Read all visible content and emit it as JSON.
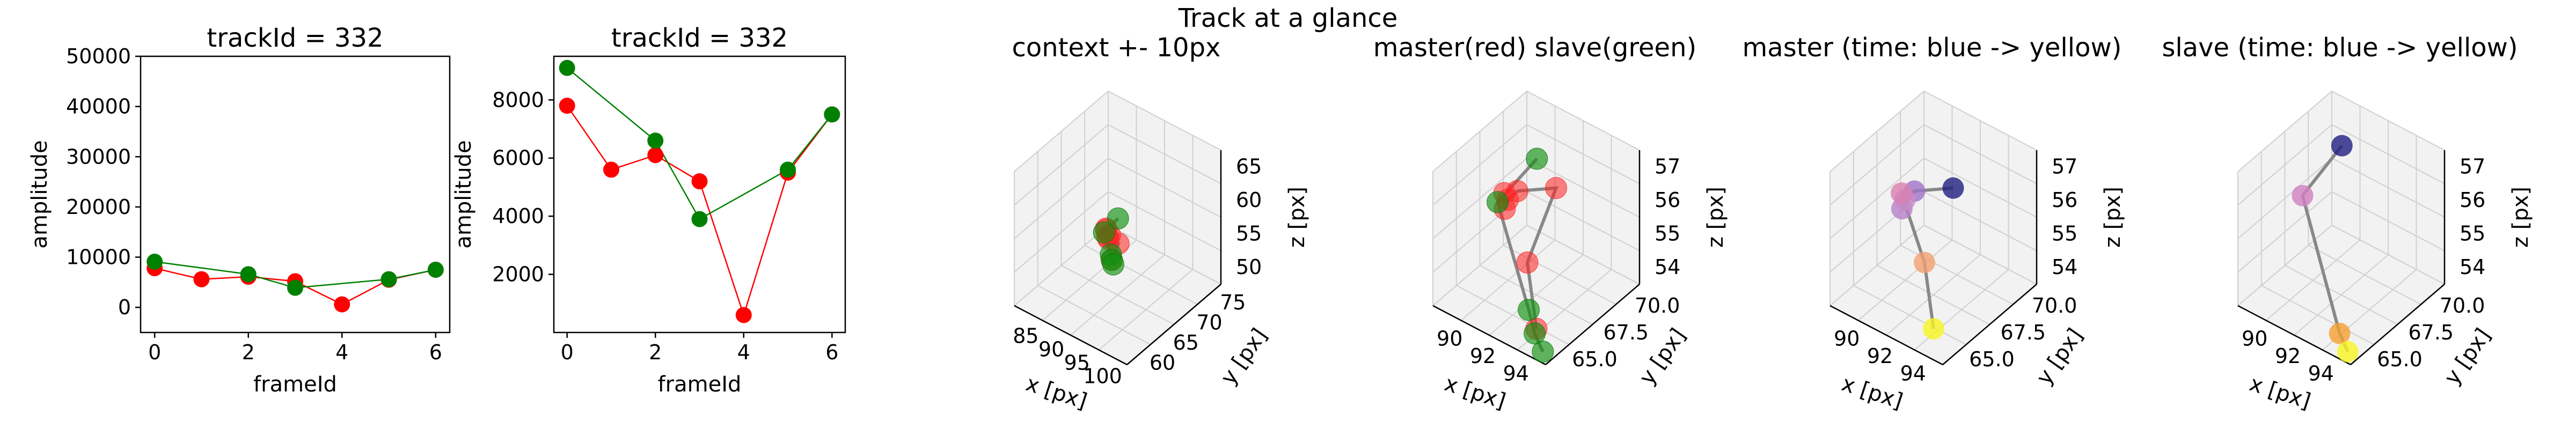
{
  "suptitle": "Track at a glance",
  "chart_data": [
    {
      "type": "line",
      "title": "trackId = 332",
      "xlabel": "frameId",
      "ylabel": "amplitude",
      "xlim": [
        -0.3,
        6.3
      ],
      "ylim": [
        -5000,
        50000
      ],
      "xticks": [
        0,
        2,
        4,
        6
      ],
      "yticks": [
        0,
        10000,
        20000,
        30000,
        40000,
        50000
      ],
      "series": [
        {
          "color": "#ff0000",
          "x": [
            0,
            1,
            2,
            3,
            4,
            5,
            6
          ],
          "values": [
            7800,
            5600,
            6100,
            5200,
            600,
            5500,
            7500
          ]
        },
        {
          "color": "#008000",
          "x": [
            0,
            2,
            3,
            5,
            6
          ],
          "values": [
            9100,
            6600,
            3900,
            5600,
            7500
          ]
        }
      ]
    },
    {
      "type": "line",
      "title": "trackId = 332",
      "xlabel": "frameId",
      "ylabel": "amplitude",
      "xlim": [
        -0.3,
        6.3
      ],
      "ylim": [
        0,
        9500
      ],
      "xticks": [
        0,
        2,
        4,
        6
      ],
      "yticks": [
        2000,
        4000,
        6000,
        8000
      ],
      "series": [
        {
          "color": "#ff0000",
          "x": [
            0,
            1,
            2,
            3,
            4,
            5,
            6
          ],
          "values": [
            7800,
            5600,
            6100,
            5200,
            600,
            5500,
            7500
          ]
        },
        {
          "color": "#008000",
          "x": [
            0,
            2,
            3,
            5,
            6
          ],
          "values": [
            9100,
            6600,
            3900,
            5600,
            7500
          ]
        }
      ]
    },
    {
      "type": "scatter",
      "title": "context +- 10px",
      "xlabel": "x [px]",
      "ylabel": "y [px]",
      "zlabel": "z [px]",
      "xticks": [
        "85",
        "90",
        "95",
        "100"
      ],
      "yticks": [
        "60",
        "65",
        "70",
        "75"
      ],
      "zticks": [
        "50",
        "55",
        "60",
        "65"
      ],
      "master": [
        [
          91,
          66.8,
          56.5
        ],
        [
          91.2,
          66.5,
          57
        ],
        [
          91.1,
          66.9,
          55.3
        ],
        [
          91.4,
          67.1,
          55.6
        ],
        [
          92,
          66,
          56
        ],
        [
          93,
          67,
          55
        ],
        [
          93.3,
          65.2,
          53.6
        ]
      ],
      "slave": [
        [
          90.9,
          69.4,
          56.6
        ],
        [
          91,
          66.3,
          56.4
        ],
        [
          92.8,
          65.6,
          54.0
        ],
        [
          93.3,
          65.2,
          53.6
        ],
        [
          93.9,
          64.8,
          53.4
        ]
      ]
    },
    {
      "type": "scatter",
      "title": "master(red) slave(green)",
      "xlabel": "x [px]",
      "ylabel": "y [px]",
      "zlabel": "z [px]",
      "xticks": [
        "90",
        "92",
        "94"
      ],
      "yticks": [
        "65.0",
        "67.5",
        "70.0"
      ],
      "zticks": [
        "54",
        "55",
        "56",
        "57"
      ],
      "master": [
        [
          91.0,
          66.8,
          56.5
        ],
        [
          91.2,
          66.5,
          56.2
        ],
        [
          91.1,
          66.9,
          56.3
        ],
        [
          91.4,
          67.1,
          56.6
        ],
        [
          93.0,
          67.3,
          57.2
        ],
        [
          92.5,
          66.0,
          55.2
        ],
        [
          93.2,
          65.5,
          53.6
        ]
      ],
      "slave": [
        [
          90.9,
          69.4,
          56.6
        ],
        [
          91.0,
          66.3,
          56.4
        ],
        [
          92.8,
          65.6,
          54.0
        ],
        [
          93.3,
          65.2,
          53.6
        ],
        [
          93.9,
          64.8,
          53.4
        ]
      ]
    },
    {
      "type": "scatter",
      "title": "master (time: blue -> yellow)",
      "xlabel": "x [px]",
      "ylabel": "y [px]",
      "zlabel": "z [px]",
      "xticks": [
        "90",
        "92",
        "94"
      ],
      "yticks": [
        "65.0",
        "67.5",
        "70.0"
      ],
      "zticks": [
        "54",
        "55",
        "56",
        "57"
      ],
      "points": [
        [
          93.0,
          67.3,
          57.2
        ],
        [
          91.4,
          67.1,
          56.6
        ],
        [
          91.2,
          66.5,
          56.2
        ],
        [
          91.1,
          66.9,
          56.3
        ],
        [
          91.0,
          66.8,
          56.5
        ],
        [
          92.5,
          66.0,
          55.2
        ],
        [
          93.2,
          65.5,
          53.6
        ]
      ],
      "colors": [
        "#1e1e7f",
        "#9f72c8",
        "#b680c8",
        "#c88cc8",
        "#d97fb0",
        "#f2a070",
        "#f7f520"
      ]
    },
    {
      "type": "scatter",
      "title": "slave (time: blue -> yellow)",
      "xlabel": "x [px]",
      "ylabel": "y [px]",
      "zlabel": "z [px]",
      "xticks": [
        "90",
        "92",
        "94"
      ],
      "yticks": [
        "65.0",
        "67.5",
        "70.0"
      ],
      "zticks": [
        "54",
        "55",
        "56",
        "57"
      ],
      "points": [
        [
          90.9,
          69.4,
          57.0
        ],
        [
          91.0,
          66.3,
          56.6
        ],
        [
          93.3,
          65.2,
          53.6
        ],
        [
          93.9,
          64.8,
          53.4
        ]
      ],
      "colors": [
        "#1e1e7f",
        "#d080c0",
        "#f5a030",
        "#f7f520"
      ]
    }
  ]
}
